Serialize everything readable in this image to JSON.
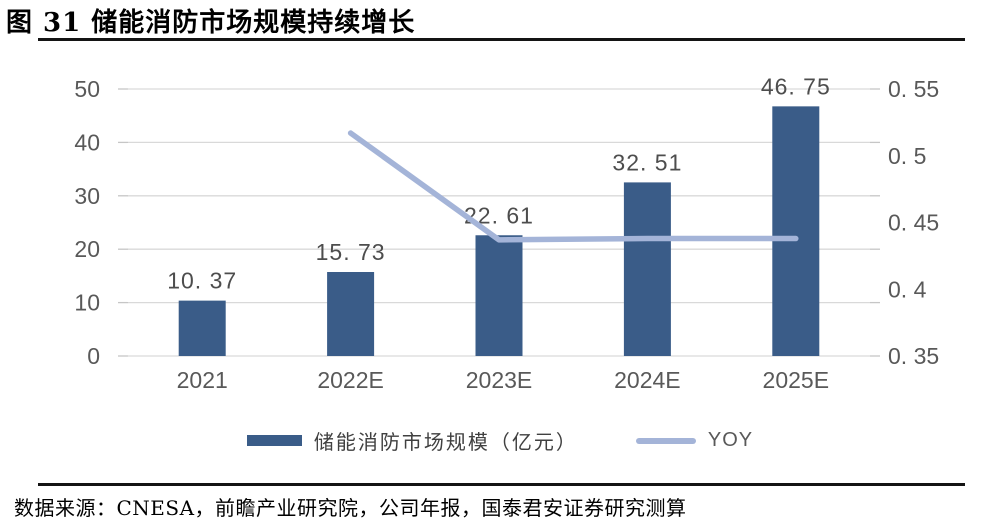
{
  "figure": {
    "title": "图 31 储能消防市场规模持续增长",
    "source": "数据来源：CNESA，前瞻产业研究院，公司年报，国泰君安证券研究测算"
  },
  "chart_data": {
    "type": "bar",
    "subtype": "bar+line combo, dual axis",
    "categories": [
      "2021",
      "2022E",
      "2023E",
      "2024E",
      "2025E"
    ],
    "series": [
      {
        "name": "储能消防市场规模（亿元）",
        "type": "bar",
        "axis": "left",
        "values": [
          10.37,
          15.73,
          22.61,
          32.51,
          46.75
        ],
        "labels": [
          "10. 37",
          "15. 73",
          "22. 61",
          "32. 51",
          "46. 75"
        ],
        "color": "#3A5C88"
      },
      {
        "name": "YOY",
        "type": "line",
        "axis": "right",
        "values": [
          null,
          0.517,
          0.437,
          0.438,
          0.438
        ],
        "color": "#A4B4D8"
      }
    ],
    "y_left": {
      "min": 0,
      "max": 50,
      "ticks": [
        0,
        10,
        20,
        30,
        40,
        50
      ],
      "tick_labels": [
        "0",
        "10",
        "20",
        "30",
        "40",
        "50"
      ]
    },
    "y_right": {
      "min": 0.35,
      "max": 0.55,
      "tick_values": [
        0.35,
        0.4,
        0.45,
        0.5,
        0.55
      ],
      "tick_labels": [
        "0. 35",
        "0. 4",
        "0. 45",
        "0. 5",
        "0. 55"
      ]
    },
    "grid": "horizontal",
    "legend_position": "bottom",
    "colors": {
      "bar": "#3A5C88",
      "line": "#A4B4D8",
      "grid": "#D9D9D9",
      "tick": "#C6C6C6",
      "axis_text": "#595959",
      "data_label": "#4D4D4D"
    }
  }
}
